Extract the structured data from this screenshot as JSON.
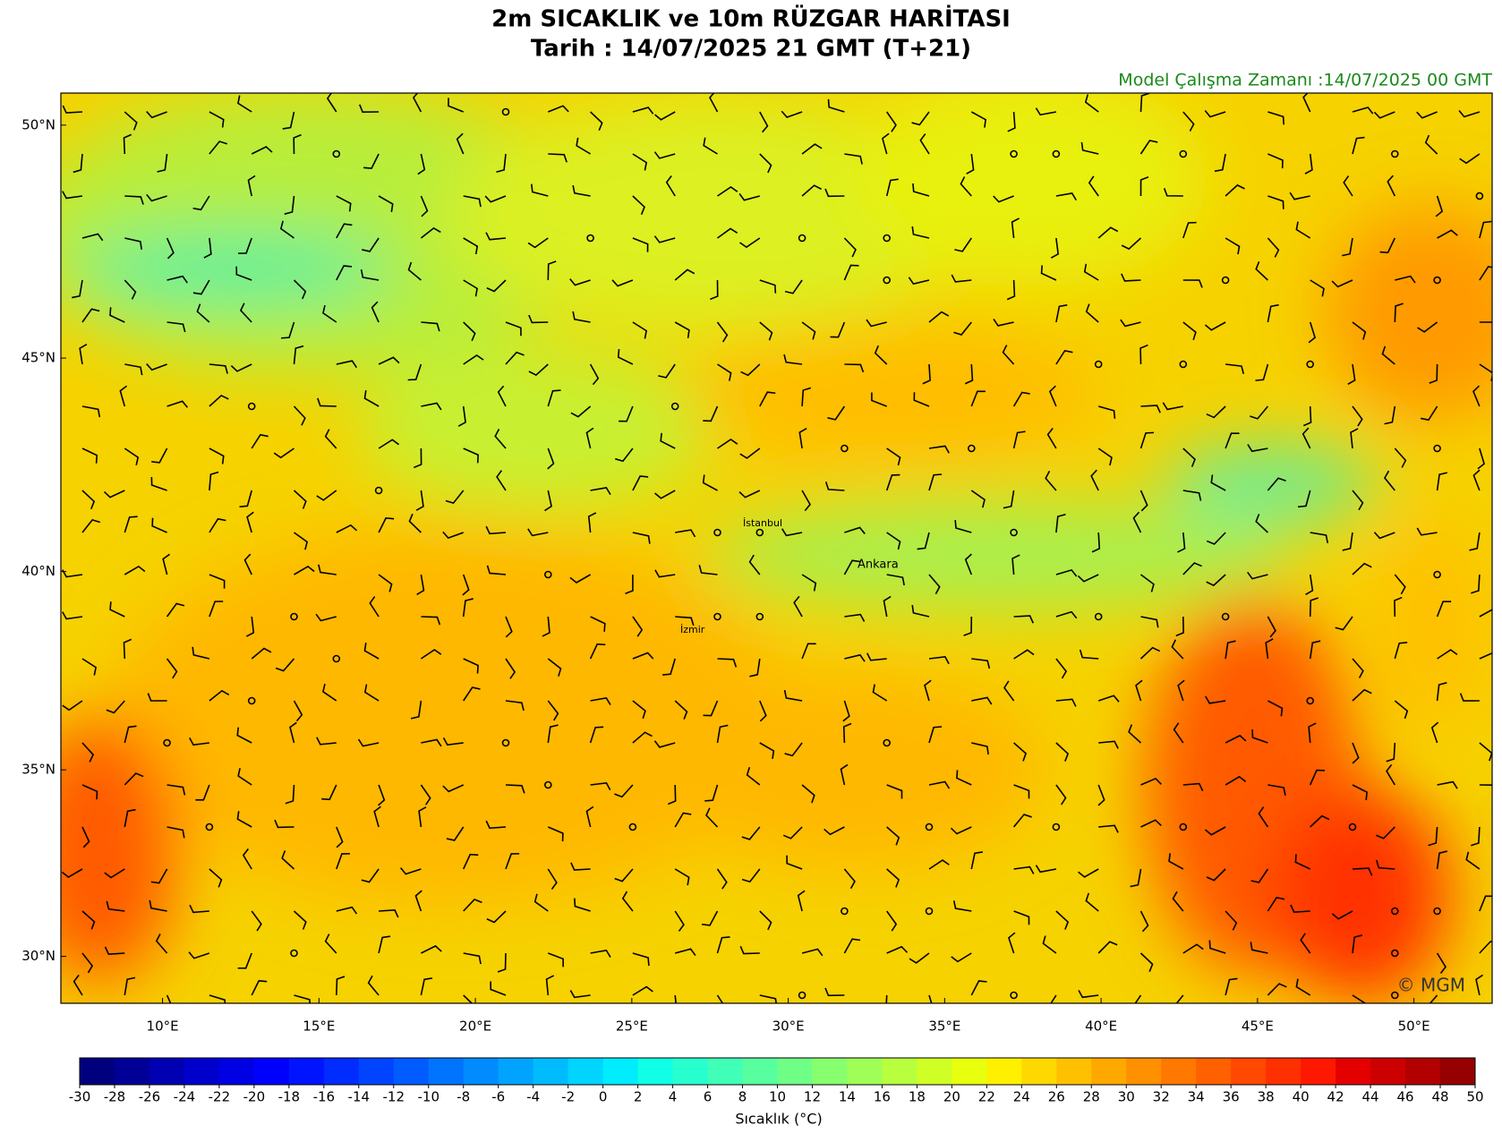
{
  "header": {
    "title": "2m SICAKLIK ve 10m RÜZGAR HARİTASI",
    "subtitle": "Tarih : 14/07/2025  21 GMT (T+21)",
    "model_time": "Model Çalışma Zamanı :14/07/2025  00 GMT"
  },
  "map": {
    "projection": "mercator",
    "xlim": [
      6.75,
      52.5
    ],
    "ylim": [
      28.7,
      50.65
    ],
    "xticks": [
      {
        "value": 10,
        "label": "10°E"
      },
      {
        "value": 15,
        "label": "15°E"
      },
      {
        "value": 20,
        "label": "20°E"
      },
      {
        "value": 25,
        "label": "25°E"
      },
      {
        "value": 30,
        "label": "30°E"
      },
      {
        "value": 35,
        "label": "35°E"
      },
      {
        "value": 40,
        "label": "40°E"
      },
      {
        "value": 45,
        "label": "45°E"
      },
      {
        "value": 50,
        "label": "50°E"
      }
    ],
    "yticks": [
      {
        "value": 30,
        "label": "30°N"
      },
      {
        "value": 35,
        "label": "35°N"
      },
      {
        "value": 40,
        "label": "40°N"
      },
      {
        "value": 45,
        "label": "45°N"
      },
      {
        "value": 50,
        "label": "50°N"
      }
    ],
    "cities": [
      "İstanbul",
      "Ankara",
      "İzmir"
    ],
    "credit": "© MGM"
  },
  "colorbar": {
    "label": "Sıcaklık (°C)",
    "ticks": [
      -30,
      -28,
      -26,
      -24,
      -22,
      -20,
      -18,
      -16,
      -14,
      -12,
      -10,
      -8,
      -6,
      -4,
      -2,
      0,
      2,
      4,
      6,
      8,
      10,
      12,
      14,
      16,
      18,
      20,
      22,
      24,
      26,
      28,
      30,
      32,
      34,
      36,
      38,
      40,
      42,
      44,
      46,
      48,
      50
    ],
    "colors": [
      "#00007f",
      "#000096",
      "#0000b2",
      "#0000cc",
      "#0000e5",
      "#0000ff",
      "#0014ff",
      "#002cff",
      "#0044ff",
      "#005cff",
      "#0074ff",
      "#008cff",
      "#00a4ff",
      "#00bcff",
      "#00d4ff",
      "#00ecff",
      "#10ffe6",
      "#28ffce",
      "#40ffb6",
      "#58ff9e",
      "#70ff86",
      "#88ff6e",
      "#a0ff56",
      "#b8ff3e",
      "#d0ff26",
      "#e8ff0e",
      "#fff000",
      "#ffd800",
      "#ffc000",
      "#ffa800",
      "#ff9000",
      "#ff7800",
      "#ff6000",
      "#ff4800",
      "#ff3000",
      "#ff1800",
      "#e50000",
      "#cc0000",
      "#b20000",
      "#960000"
    ]
  }
}
